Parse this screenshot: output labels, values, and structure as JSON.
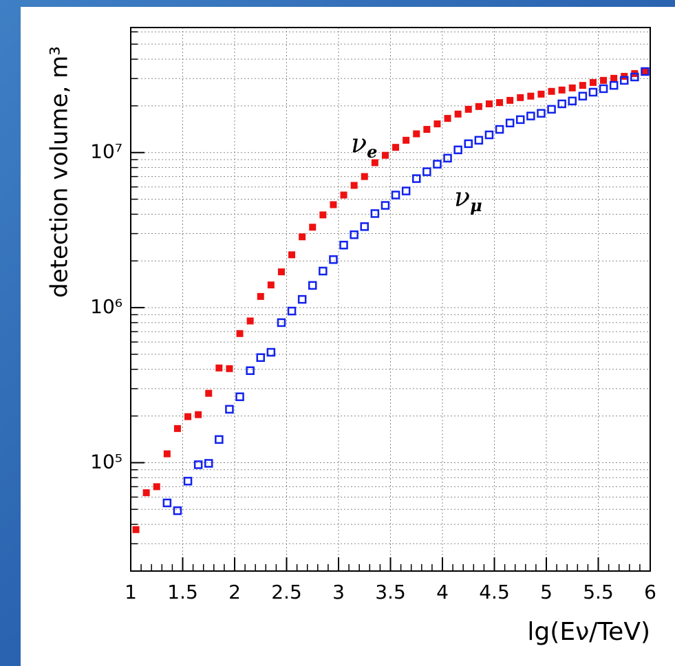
{
  "chart_data": {
    "type": "scatter",
    "log_y": true,
    "grid": true,
    "x_label": "lg(Eν/TeV)",
    "y_label": "detection volume, m³",
    "xlim": [
      1,
      6
    ],
    "xticks": [
      1,
      1.5,
      2,
      2.5,
      3,
      3.5,
      4,
      4.5,
      5,
      5.5,
      6
    ],
    "ylim": [
      20000,
      64000000
    ],
    "yticks": [
      {
        "value": 100000,
        "label": "10⁵"
      },
      {
        "value": 1000000,
        "label": "10⁶"
      },
      {
        "value": 10000000,
        "label": "10⁷"
      }
    ],
    "yminor": [
      20000,
      30000,
      40000,
      50000,
      60000,
      70000,
      80000,
      90000,
      200000,
      300000,
      400000,
      500000,
      600000,
      700000,
      800000,
      900000,
      2000000,
      3000000,
      4000000,
      5000000,
      6000000,
      7000000,
      8000000,
      9000000,
      20000000,
      30000000,
      40000000,
      50000000,
      60000000
    ],
    "series": [
      {
        "name": "νe",
        "color": "#ee1111",
        "marker": "filled-square",
        "x": [
          1.05,
          1.15,
          1.25,
          1.35,
          1.45,
          1.55,
          1.65,
          1.75,
          1.85,
          1.95,
          2.05,
          2.15,
          2.25,
          2.35,
          2.45,
          2.55,
          2.65,
          2.75,
          2.85,
          2.95,
          3.05,
          3.15,
          3.25,
          3.35,
          3.45,
          3.55,
          3.65,
          3.75,
          3.85,
          3.95,
          4.05,
          4.15,
          4.25,
          4.35,
          4.45,
          4.55,
          4.65,
          4.75,
          4.85,
          4.95,
          5.05,
          5.15,
          5.25,
          5.35,
          5.45,
          5.55,
          5.65,
          5.75,
          5.85,
          5.95
        ],
        "values": [
          37000,
          64000,
          70000,
          114000,
          166000,
          198000,
          204000,
          280000,
          408000,
          404000,
          680000,
          820000,
          1180000,
          1400000,
          1700000,
          2190000,
          2860000,
          3300000,
          3960000,
          4610000,
          5320000,
          6140000,
          7000000,
          8600000,
          9600000,
          10800000,
          12000000,
          13200000,
          14100000,
          15300000,
          16600000,
          17700000,
          19000000,
          19800000,
          20600000,
          21000000,
          21700000,
          22600000,
          23100000,
          23800000,
          24800000,
          25300000,
          26100000,
          27100000,
          28300000,
          29200000,
          30100000,
          31000000,
          32300000,
          33600000
        ]
      },
      {
        "name": "νμ",
        "color": "#1122ee",
        "marker": "open-square",
        "x": [
          1.35,
          1.45,
          1.55,
          1.65,
          1.75,
          1.85,
          1.95,
          2.05,
          2.15,
          2.25,
          2.35,
          2.45,
          2.55,
          2.65,
          2.75,
          2.85,
          2.95,
          3.05,
          3.15,
          3.25,
          3.35,
          3.45,
          3.55,
          3.65,
          3.75,
          3.85,
          3.95,
          4.05,
          4.15,
          4.25,
          4.35,
          4.45,
          4.55,
          4.65,
          4.75,
          4.85,
          4.95,
          5.05,
          5.15,
          5.25,
          5.35,
          5.45,
          5.55,
          5.65,
          5.75,
          5.85,
          5.95
        ],
        "values": [
          55000,
          49000,
          76000,
          97000,
          99000,
          141000,
          221000,
          266000,
          392000,
          476000,
          515000,
          800000,
          950000,
          1130000,
          1390000,
          1720000,
          2040000,
          2530000,
          2950000,
          3330000,
          4040000,
          4560000,
          5320000,
          5650000,
          6790000,
          7520000,
          8410000,
          9200000,
          10400000,
          11400000,
          12000000,
          13000000,
          14100000,
          15500000,
          16300000,
          17200000,
          17900000,
          19000000,
          20600000,
          21500000,
          23100000,
          24500000,
          25800000,
          27100000,
          29200000,
          30700000,
          33300000
        ]
      }
    ]
  }
}
